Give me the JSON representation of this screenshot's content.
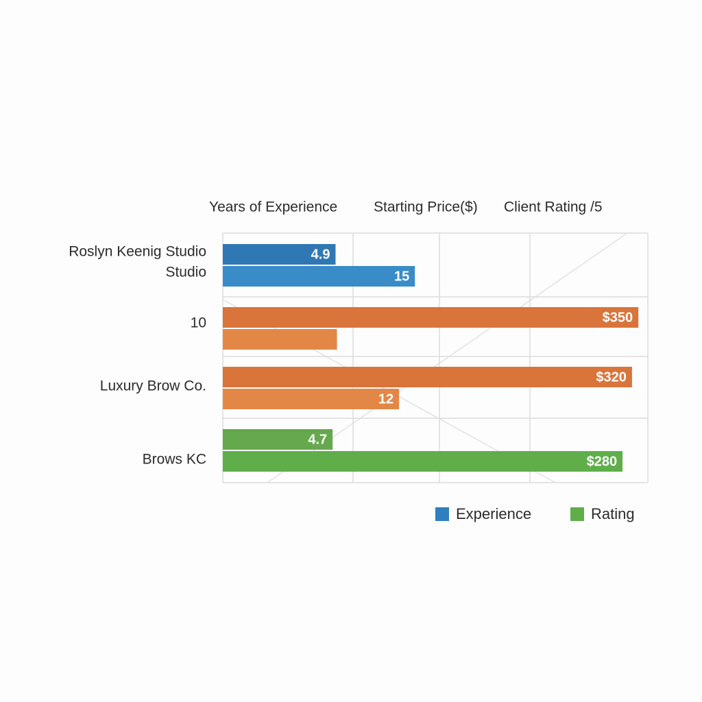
{
  "chart_data": {
    "type": "bar",
    "orientation": "horizontal",
    "header": [
      "Years of Experience",
      "Starting Price($)",
      "Client Rating /5"
    ],
    "categories": [
      {
        "label": [
          "Roslyn Keenig Studio",
          "Studio"
        ],
        "values": [
          4.9,
          15
        ],
        "value_labels": [
          "4.9",
          "15"
        ],
        "colors": [
          "#2f78b4",
          "#3a8cc8"
        ]
      },
      {
        "label": [
          "10"
        ],
        "values": [
          350,
          5
        ],
        "value_labels": [
          "$350",
          null
        ],
        "colors": [
          "#d9743a",
          "#e38747"
        ]
      },
      {
        "label": [
          "Luxury Brow Co."
        ],
        "values": [
          320,
          12
        ],
        "value_labels": [
          "$320",
          "12"
        ],
        "colors": [
          "#d9743a",
          "#e38747"
        ]
      },
      {
        "label": [
          "Brows KC"
        ],
        "values": [
          4.7,
          280
        ],
        "value_labels": [
          "4.7",
          "$280"
        ],
        "colors": [
          "#66a84e",
          "#5fae4a"
        ]
      }
    ],
    "xlim": [
      1,
      400
    ],
    "log_scale": true,
    "legend": [
      {
        "name": "Experience",
        "color": "#2f7fc0"
      },
      {
        "name": "Rating",
        "color": "#5fae4a"
      }
    ],
    "legend_position": "bottom-right"
  }
}
